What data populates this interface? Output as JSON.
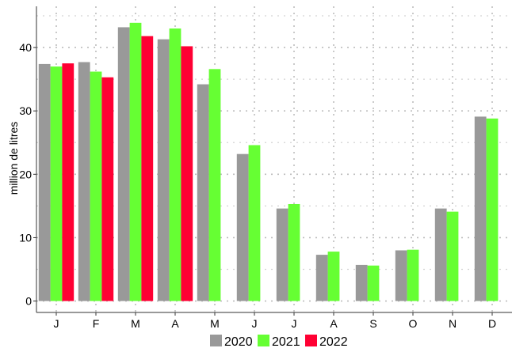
{
  "chart_data": {
    "type": "bar",
    "categories": [
      "J",
      "F",
      "M",
      "A",
      "M",
      "J",
      "J",
      "A",
      "S",
      "O",
      "N",
      "D"
    ],
    "series": [
      {
        "name": "2020",
        "color": "#999999",
        "values": [
          37.4,
          37.7,
          43.2,
          41.3,
          34.2,
          23.2,
          14.6,
          7.3,
          5.7,
          8.0,
          14.6,
          29.1
        ]
      },
      {
        "name": "2021",
        "color": "#66ff33",
        "values": [
          37.0,
          36.2,
          43.9,
          43.0,
          36.6,
          24.6,
          15.3,
          7.8,
          5.6,
          8.1,
          14.1,
          28.8
        ]
      },
      {
        "name": "2022",
        "color": "#ff0033",
        "values": [
          37.5,
          35.3,
          41.8,
          40.2,
          null,
          null,
          null,
          null,
          null,
          null,
          null,
          null
        ]
      }
    ],
    "xlabel": "",
    "ylabel": "million de litres",
    "yticks": [
      0,
      10,
      20,
      30,
      40
    ],
    "ylim": [
      -1.8,
      46.5
    ],
    "grid": true,
    "legend_position": "bottom"
  }
}
